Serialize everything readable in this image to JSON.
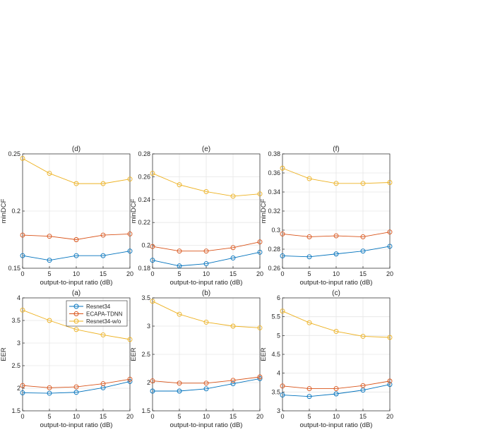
{
  "colors": {
    "series": [
      "#0072BD",
      "#D95319",
      "#EDB120"
    ],
    "grid": "#e6e6e6",
    "axis": "#262626"
  },
  "legend": {
    "placement": "top-right",
    "subplot": 3,
    "entries": [
      "Resnet34",
      "ECAPA-TDNN",
      "Resnet34-w/o"
    ]
  },
  "chart_data": [
    {
      "type": "line",
      "title": "(d)",
      "xlabel": "output-to-input ratio (dB)",
      "ylabel": "minDCF",
      "x": [
        0,
        5,
        10,
        15,
        20
      ],
      "xlim": [
        0,
        20
      ],
      "xticks": [
        "0",
        "5",
        "10",
        "15",
        "20"
      ],
      "ylim": [
        0.15,
        0.25
      ],
      "yticks": [
        {
          "v": 0.15,
          "t": "0.15"
        },
        {
          "v": 0.2,
          "t": "0.2"
        },
        {
          "v": 0.25,
          "t": "0.25"
        }
      ],
      "grid": true,
      "series": [
        {
          "name": "Resnet34",
          "values": [
            0.161,
            0.157,
            0.161,
            0.161,
            0.165
          ]
        },
        {
          "name": "ECAPA-TDNN",
          "values": [
            0.179,
            0.178,
            0.175,
            0.179,
            0.18
          ]
        },
        {
          "name": "Resnet34-w/o",
          "values": [
            0.246,
            0.233,
            0.224,
            0.224,
            0.228
          ]
        }
      ]
    },
    {
      "type": "line",
      "title": "(e)",
      "xlabel": "output-to-input ratio (dB)",
      "ylabel": "minDCF",
      "x": [
        0,
        5,
        10,
        15,
        20
      ],
      "xlim": [
        0,
        20
      ],
      "xticks": [
        "0",
        "5",
        "10",
        "15",
        "20"
      ],
      "ylim": [
        0.18,
        0.28
      ],
      "yticks": [
        {
          "v": 0.18,
          "t": "0.18"
        },
        {
          "v": 0.2,
          "t": "0.2"
        },
        {
          "v": 0.22,
          "t": "0.22"
        },
        {
          "v": 0.24,
          "t": "0.24"
        },
        {
          "v": 0.26,
          "t": "0.26"
        },
        {
          "v": 0.28,
          "t": "0.28"
        }
      ],
      "grid": true,
      "series": [
        {
          "name": "Resnet34",
          "values": [
            0.187,
            0.182,
            0.184,
            0.189,
            0.194
          ]
        },
        {
          "name": "ECAPA-TDNN",
          "values": [
            0.199,
            0.195,
            0.195,
            0.198,
            0.203
          ]
        },
        {
          "name": "Resnet34-w/o",
          "values": [
            0.263,
            0.253,
            0.247,
            0.243,
            0.245
          ]
        }
      ]
    },
    {
      "type": "line",
      "title": "(f)",
      "xlabel": "output-to-input ratio (dB)",
      "ylabel": "minDCF",
      "x": [
        0,
        5,
        10,
        15,
        20
      ],
      "xlim": [
        0,
        20
      ],
      "xticks": [
        "0",
        "5",
        "10",
        "15",
        "20"
      ],
      "ylim": [
        0.26,
        0.38
      ],
      "yticks": [
        {
          "v": 0.26,
          "t": "0.26"
        },
        {
          "v": 0.28,
          "t": "0.28"
        },
        {
          "v": 0.3,
          "t": "0.3"
        },
        {
          "v": 0.32,
          "t": "0.32"
        },
        {
          "v": 0.34,
          "t": "0.34"
        },
        {
          "v": 0.36,
          "t": "0.36"
        },
        {
          "v": 0.38,
          "t": "0.38"
        }
      ],
      "grid": true,
      "series": [
        {
          "name": "Resnet34",
          "values": [
            0.273,
            0.272,
            0.275,
            0.278,
            0.283
          ]
        },
        {
          "name": "ECAPA-TDNN",
          "values": [
            0.296,
            0.293,
            0.294,
            0.293,
            0.298
          ]
        },
        {
          "name": "Resnet34-w/o",
          "values": [
            0.365,
            0.354,
            0.349,
            0.349,
            0.35
          ]
        }
      ]
    },
    {
      "type": "line",
      "title": "(a)",
      "xlabel": "output-to-input ratio (dB)",
      "ylabel": "EER",
      "x": [
        0,
        5,
        10,
        15,
        20
      ],
      "xlim": [
        0,
        20
      ],
      "xticks": [
        "0",
        "5",
        "10",
        "15",
        "20"
      ],
      "ylim": [
        1.5,
        4
      ],
      "yticks": [
        {
          "v": 1.5,
          "t": "1.5"
        },
        {
          "v": 2,
          "t": "2"
        },
        {
          "v": 2.5,
          "t": "2.5"
        },
        {
          "v": 3,
          "t": "3"
        },
        {
          "v": 3.5,
          "t": "3.5"
        },
        {
          "v": 4,
          "t": "4"
        }
      ],
      "grid": true,
      "series": [
        {
          "name": "Resnet34",
          "values": [
            1.9,
            1.89,
            1.91,
            2.01,
            2.15
          ]
        },
        {
          "name": "ECAPA-TDNN",
          "values": [
            2.06,
            2.01,
            2.03,
            2.1,
            2.2
          ]
        },
        {
          "name": "Resnet34-w/o",
          "values": [
            3.73,
            3.5,
            3.3,
            3.18,
            3.08
          ]
        }
      ]
    },
    {
      "type": "line",
      "title": "(b)",
      "xlabel": "output-to-input ratio (dB)",
      "ylabel": "EER",
      "x": [
        0,
        5,
        10,
        15,
        20
      ],
      "xlim": [
        0,
        20
      ],
      "xticks": [
        "0",
        "5",
        "10",
        "15",
        "20"
      ],
      "ylim": [
        1.5,
        3.5
      ],
      "yticks": [
        {
          "v": 1.5,
          "t": "1.5"
        },
        {
          "v": 2,
          "t": "2"
        },
        {
          "v": 2.5,
          "t": "2.5"
        },
        {
          "v": 3,
          "t": "3"
        },
        {
          "v": 3.5,
          "t": "3.5"
        }
      ],
      "grid": true,
      "series": [
        {
          "name": "Resnet34",
          "values": [
            1.85,
            1.85,
            1.89,
            1.98,
            2.07
          ]
        },
        {
          "name": "ECAPA-TDNN",
          "values": [
            2.03,
            1.99,
            1.99,
            2.04,
            2.1
          ]
        },
        {
          "name": "Resnet34-w/o",
          "values": [
            3.44,
            3.21,
            3.07,
            3.0,
            2.97
          ]
        }
      ]
    },
    {
      "type": "line",
      "title": "(c)",
      "xlabel": "output-to-input ratio (dB)",
      "ylabel": "EER",
      "x": [
        0,
        5,
        10,
        15,
        20
      ],
      "xlim": [
        0,
        20
      ],
      "xticks": [
        "0",
        "5",
        "10",
        "15",
        "20"
      ],
      "ylim": [
        3,
        6
      ],
      "yticks": [
        {
          "v": 3,
          "t": "3"
        },
        {
          "v": 3.5,
          "t": "3.5"
        },
        {
          "v": 4,
          "t": "4"
        },
        {
          "v": 4.5,
          "t": "4.5"
        },
        {
          "v": 5,
          "t": "5"
        },
        {
          "v": 5.5,
          "t": "5.5"
        },
        {
          "v": 6,
          "t": "6"
        }
      ],
      "grid": true,
      "series": [
        {
          "name": "Resnet34",
          "values": [
            3.42,
            3.38,
            3.45,
            3.55,
            3.7
          ]
        },
        {
          "name": "ECAPA-TDNN",
          "values": [
            3.66,
            3.59,
            3.59,
            3.67,
            3.79
          ]
        },
        {
          "name": "Resnet34-w/o",
          "values": [
            5.65,
            5.34,
            5.11,
            4.98,
            4.95
          ]
        }
      ]
    }
  ]
}
